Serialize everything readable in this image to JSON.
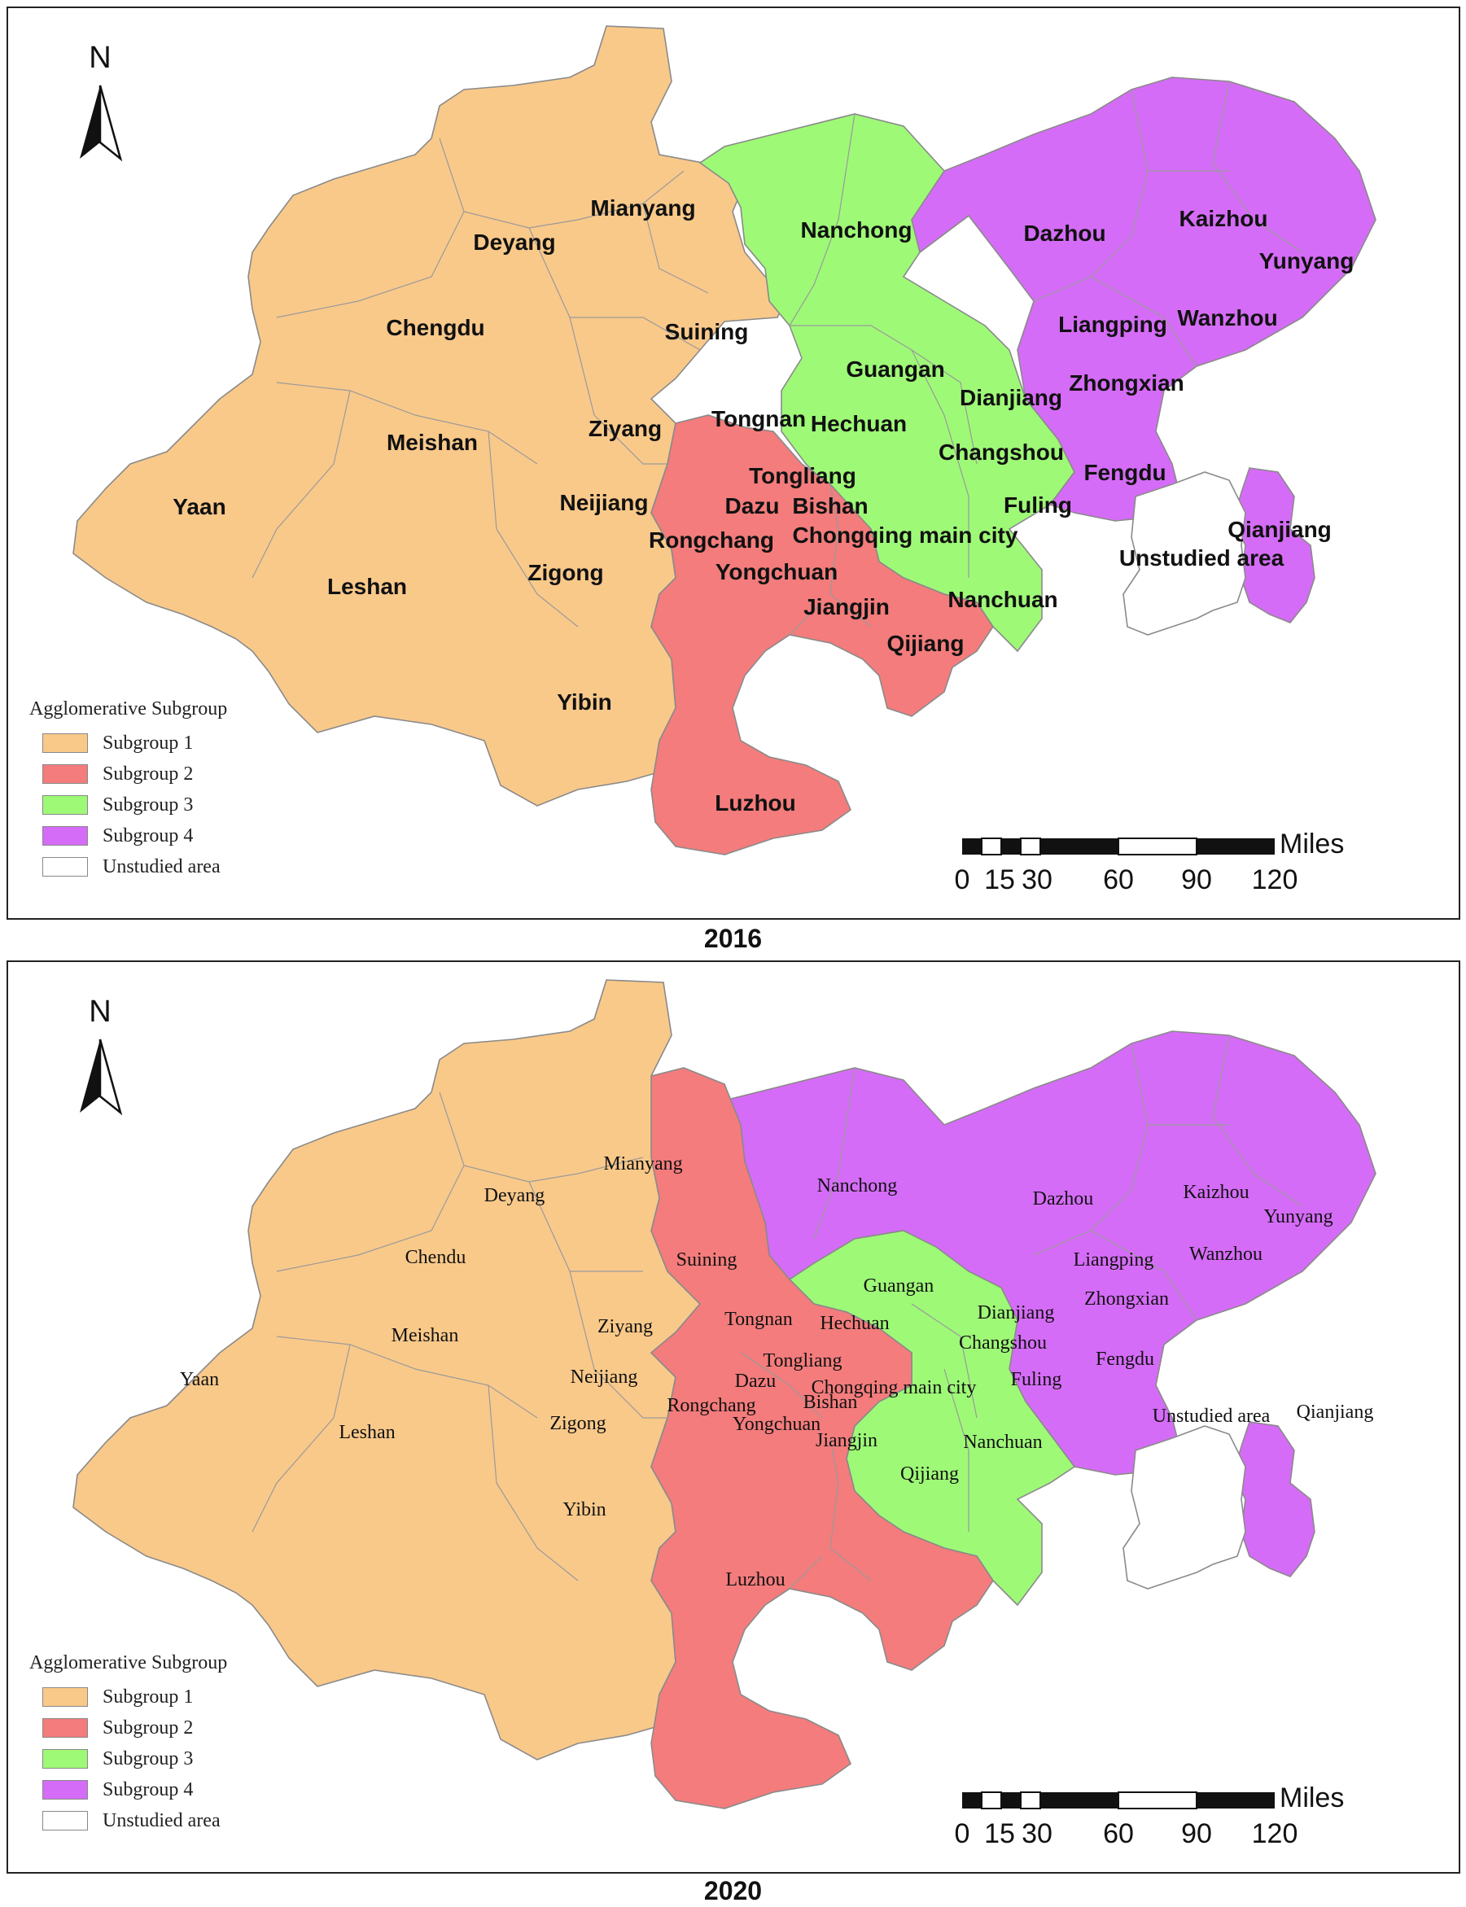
{
  "colors": {
    "subgroup_1": "#F9C98A",
    "subgroup_2": "#F47C7C",
    "subgroup_3": "#9EF977",
    "subgroup_4": "#D56CF7",
    "unstudied": "#FFFFFF"
  },
  "north_arrow": {
    "letter": "N",
    "icon": "north-arrow-icon"
  },
  "legend": {
    "title": "Agglomerative Subgroup",
    "items": [
      {
        "label": "Subgroup 1",
        "color": "#F9C98A"
      },
      {
        "label": "Subgroup 2",
        "color": "#F47C7C"
      },
      {
        "label": "Subgroup 3",
        "color": "#9EF977"
      },
      {
        "label": "Subgroup 4",
        "color": "#D56CF7"
      },
      {
        "label": "Unstudied area",
        "color": "#FFFFFF"
      }
    ]
  },
  "scale_bar": {
    "unit": "Miles",
    "ticks": [
      "0",
      "15",
      "30",
      "60",
      "90",
      "120"
    ]
  },
  "panels": [
    {
      "year": "2016",
      "assignments": {
        "Mianyang": 1,
        "Deyang": 1,
        "Chengdu": 1,
        "Suining": 1,
        "Meishan": 1,
        "Ziyang": 1,
        "Tongnan": 1,
        "Yaan": 1,
        "Neijiang": 1,
        "Leshan": 1,
        "Zigong": 1,
        "Yibin": 1,
        "Tongliang": 2,
        "Dazu": 2,
        "Bishan": 2,
        "Rongchang": 2,
        "Yongchuan": 2,
        "Jiangjin": 2,
        "Qijiang": 2,
        "Luzhou": 2,
        "Nanchong": 3,
        "Guangan": 3,
        "Hechuan": 3,
        "Dianjiang": 3,
        "Changshou": 3,
        "Fuling": 3,
        "Chongqing main city": 3,
        "Nanchuan": 3,
        "Dazhou": 4,
        "Kaizhou": 4,
        "Yunyang": 4,
        "Liangping": 4,
        "Wanzhou": 4,
        "Zhongxian": 4,
        "Fengdu": 4,
        "Qianjiang": 4
      },
      "labels": [
        "Mianyang",
        "Deyang",
        "Chengdu",
        "Suining",
        "Meishan",
        "Ziyang",
        "Tongnan",
        "Yaan",
        "Neijiang",
        "Leshan",
        "Zigong",
        "Yibin",
        "Nanchong",
        "Guangan",
        "Hechuan",
        "Dianjiang",
        "Changshou",
        "Fuling",
        "Chongqing main city",
        "Nanchuan",
        "Tongliang",
        "Dazu",
        "Bishan",
        "Rongchang",
        "Yongchuan",
        "Jiangjin",
        "Qijiang",
        "Luzhou",
        "Dazhou",
        "Kaizhou",
        "Yunyang",
        "Liangping",
        "Wanzhou",
        "Zhongxian",
        "Fengdu",
        "Qianjiang",
        "Unstudied area"
      ]
    },
    {
      "year": "2020",
      "assignments": {
        "Mianyang": 1,
        "Deyang": 1,
        "Chendu": 1,
        "Meishan": 1,
        "Ziyang": 1,
        "Yaan": 1,
        "Neijiang": 1,
        "Leshan": 1,
        "Zigong": 1,
        "Yibin": 1,
        "Suining": 2,
        "Tongnan": 2,
        "Hechuan": 2,
        "Tongliang": 2,
        "Dazu": 2,
        "Bishan": 2,
        "Rongchang": 2,
        "Yongchuan": 2,
        "Jiangjin": 2,
        "Qijiang": 2,
        "Luzhou": 2,
        "Guangan": 3,
        "Dianjiang": 3,
        "Changshou": 3,
        "Fuling": 3,
        "Chongqing main city": 3,
        "Nanchuan": 3,
        "Nanchong": 4,
        "Dazhou": 4,
        "Kaizhou": 4,
        "Yunyang": 4,
        "Liangping": 4,
        "Wanzhou": 4,
        "Zhongxian": 4,
        "Fengdu": 4,
        "Qianjiang": 4
      },
      "labels": [
        "Mianyang",
        "Deyang",
        "Chendu",
        "Suining",
        "Meishan",
        "Ziyang",
        "Tongnan",
        "Hechuan",
        "Yaan",
        "Neijiang",
        "Leshan",
        "Zigong",
        "Yibin",
        "Nanchong",
        "Guangan",
        "Dianjiang",
        "Changshou",
        "Fuling",
        "Chongqing main city",
        "Nanchuan",
        "Tongliang",
        "Dazu",
        "Bishan",
        "Rongchang",
        "Yongchuan",
        "Jiangjin",
        "Qijiang",
        "Luzhou",
        "Dazhou",
        "Kaizhou",
        "Yunyang",
        "Liangping",
        "Wanzhou",
        "Zhongxian",
        "Fengdu",
        "Qianjiang",
        "Unstudied area"
      ]
    }
  ]
}
